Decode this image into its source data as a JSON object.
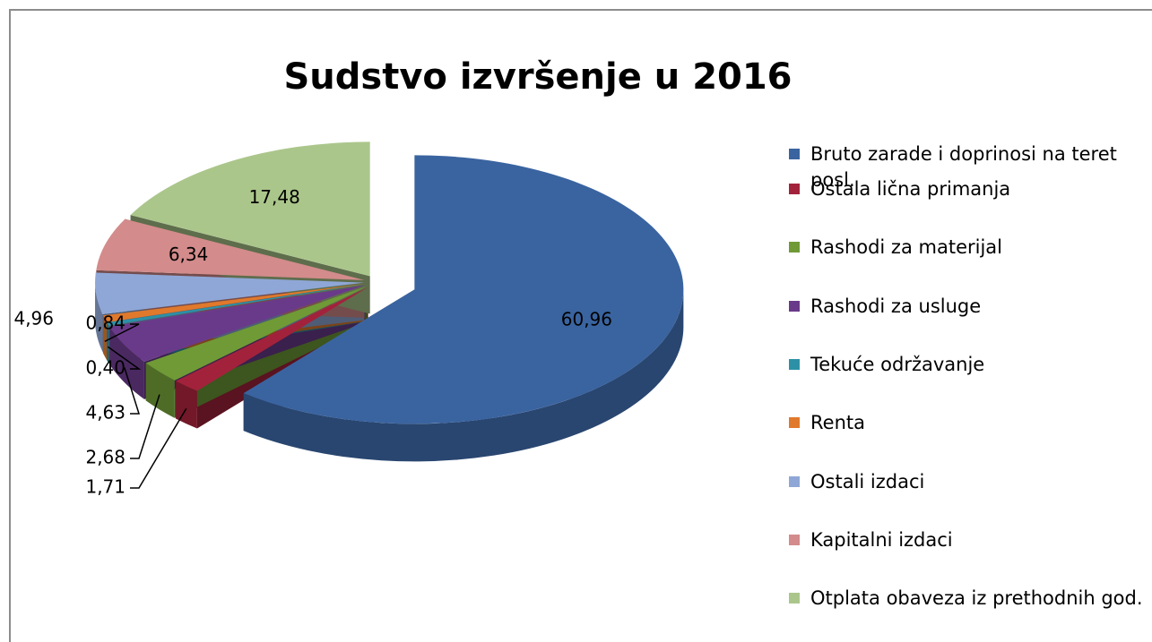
{
  "chart_data": {
    "type": "pie",
    "title": "Sudstvo izvršenje u 2016",
    "categories": [
      "Bruto zarade i doprinosi na teret posl.",
      "Ostala lična primanja",
      "Rashodi za materijal",
      "Rashodi za  usluge",
      "Tekuće održavanje",
      "Renta",
      "Ostali izdaci",
      "Kapitalni izdaci",
      "Otplata obaveza iz  prethodnih god."
    ],
    "values": [
      60.96,
      1.71,
      2.68,
      4.63,
      0.4,
      0.84,
      4.96,
      6.34,
      17.48
    ],
    "value_labels": [
      "60,96",
      "1,71",
      "2,68",
      "4,63",
      "0,40",
      "0,84",
      "4,96",
      "6,34",
      "17,48"
    ],
    "colors": [
      "#3a64a0",
      "#a3223b",
      "#6f9a36",
      "#6a3a8a",
      "#2c91a6",
      "#e0792b",
      "#8fa7d6",
      "#d38b8b",
      "#abc68b"
    ],
    "legend": "right"
  }
}
